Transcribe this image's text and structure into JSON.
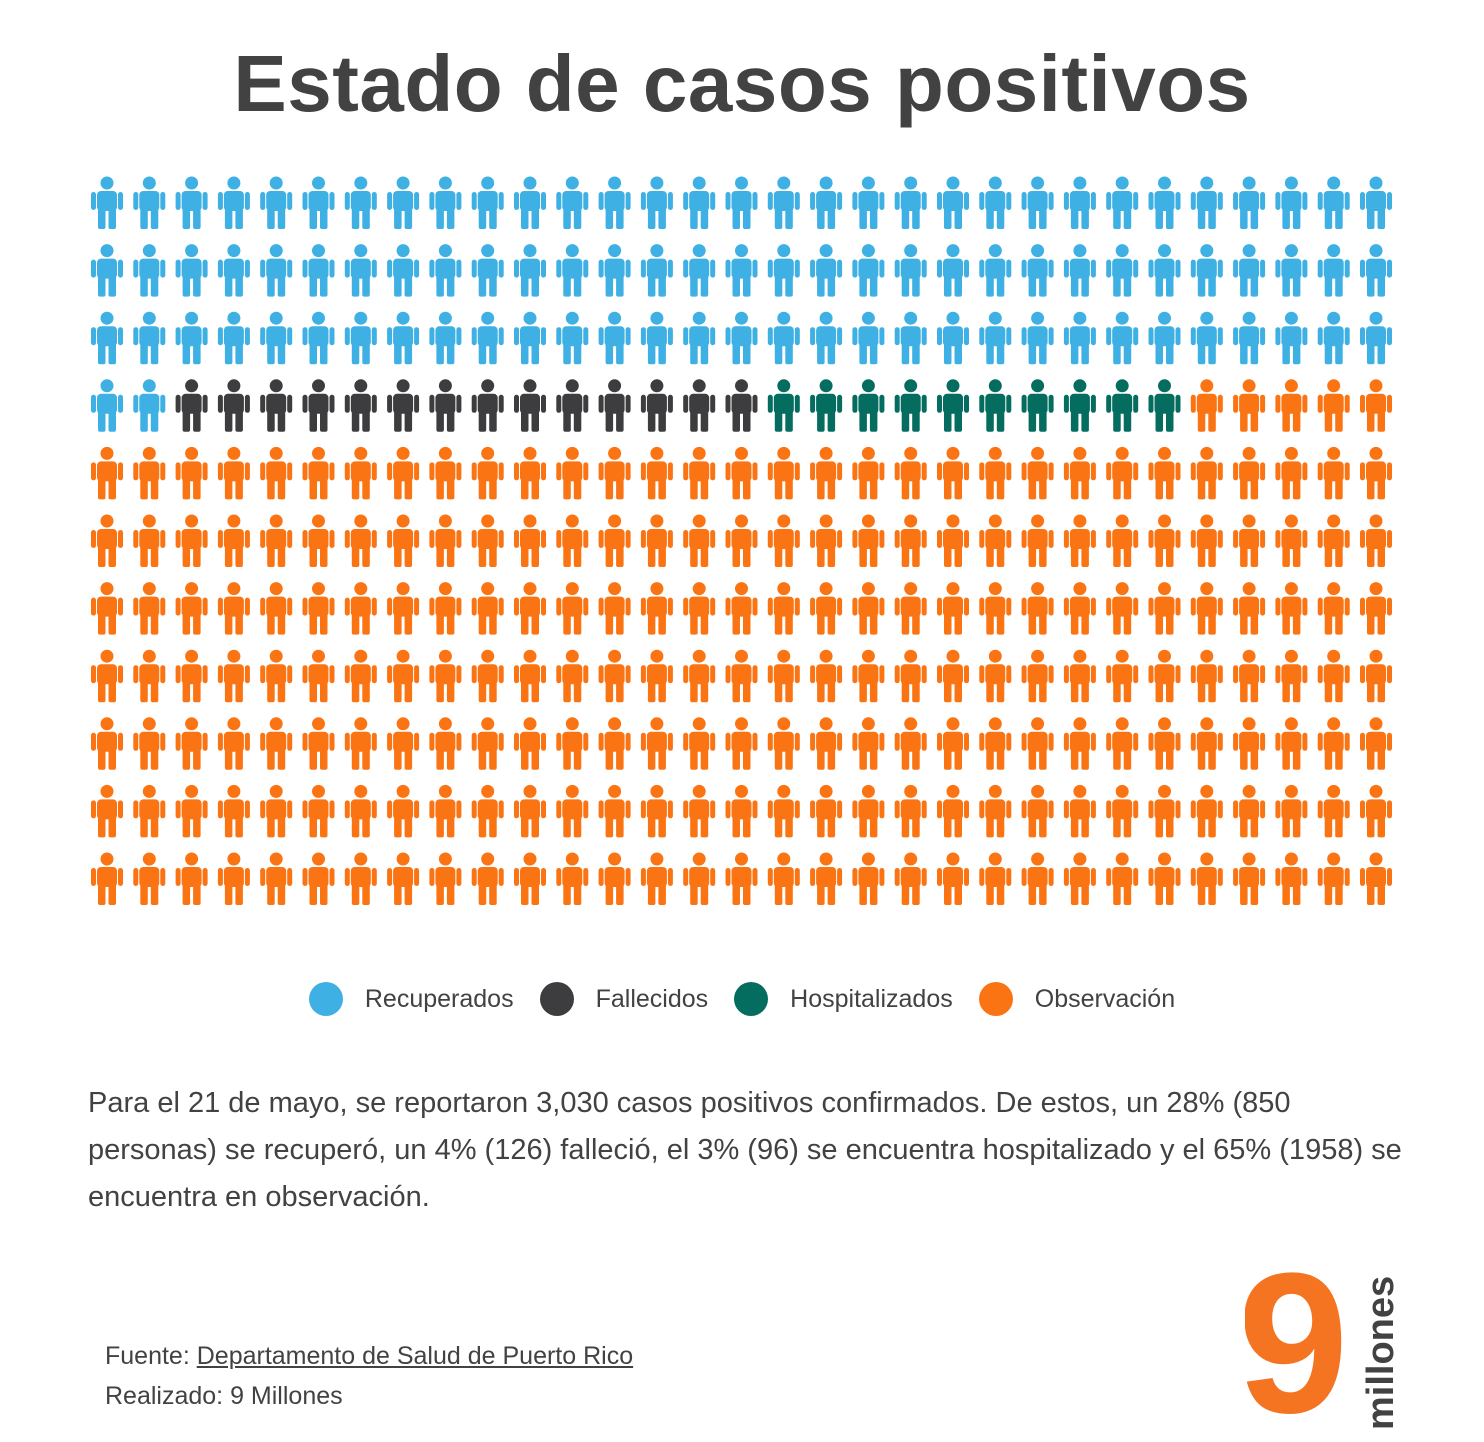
{
  "title": "Estado de casos positivos",
  "chart_data": {
    "type": "pictogram",
    "title": "Estado de casos positivos",
    "columns": 31,
    "rows": 11,
    "series": [
      {
        "name": "Recuperados",
        "count": 95,
        "color": "#3eb0e3"
      },
      {
        "name": "Fallecidos",
        "count": 14,
        "color": "#3d3d3f"
      },
      {
        "name": "Hospitalizados",
        "count": 10,
        "color": "#056d5f"
      },
      {
        "name": "Observación",
        "count": 222,
        "color": "#fb7414"
      }
    ]
  },
  "legend": [
    {
      "label": "Recuperados",
      "color": "#3eb0e3"
    },
    {
      "label": "Fallecidos",
      "color": "#3d3d3f"
    },
    {
      "label": "Hospitalizados",
      "color": "#056d5f"
    },
    {
      "label": "Observación",
      "color": "#fb7414"
    }
  ],
  "description": "Para el 21 de mayo, se reportaron 3,030 casos positivos confirmados. De estos, un 28% (850 personas) se recuperó, un 4% (126) falleció, el 3% (96) se encuentra hospitalizado y el 65% (1958) se encuentra en observación.",
  "footer": {
    "source_label": "Fuente: ",
    "source_link": "Departamento de Salud de Puerto Rico",
    "credit": "Realizado: 9 Millones"
  },
  "logo": {
    "number": "9",
    "word": "millones",
    "color": "#f47422"
  }
}
